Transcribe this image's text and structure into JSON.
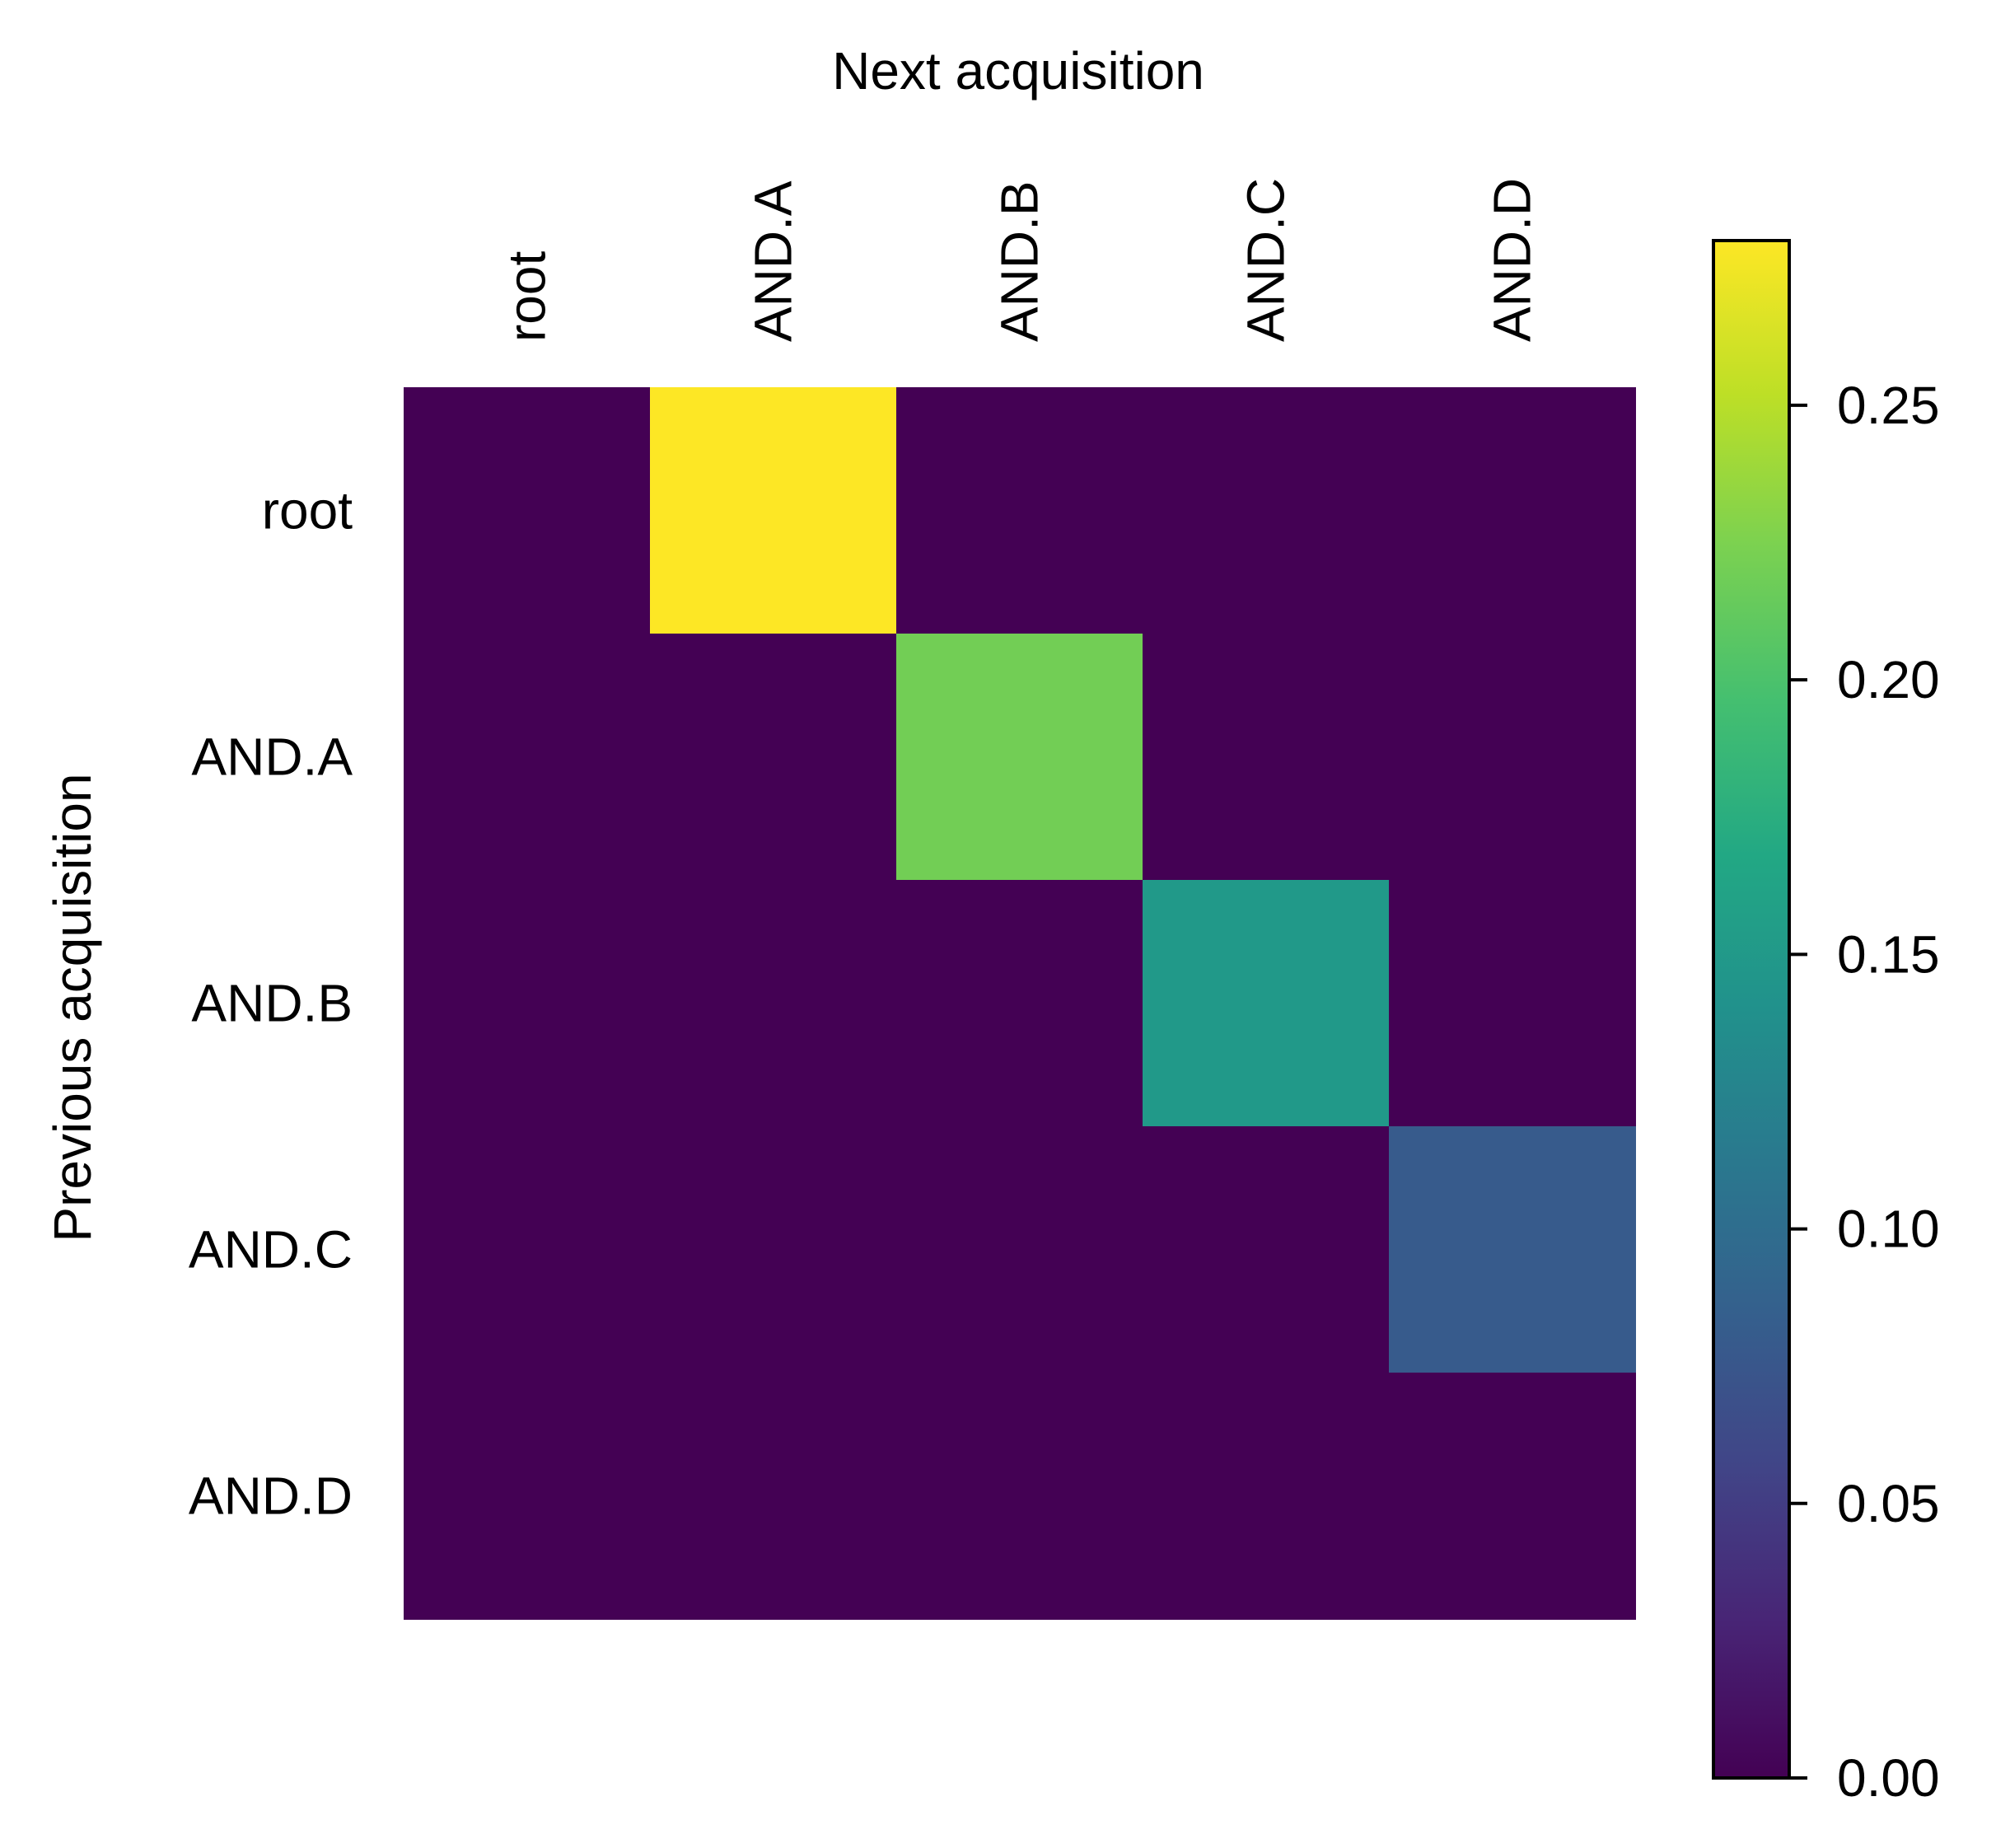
{
  "chart_data": {
    "type": "heatmap",
    "title": "",
    "xlabel": "Next acquisition",
    "ylabel": "Previous acquisition",
    "x_categories": [
      "root",
      "AND.A",
      "AND.B",
      "AND.C",
      "AND.D"
    ],
    "y_categories": [
      "root",
      "AND.A",
      "AND.B",
      "AND.C",
      "AND.D"
    ],
    "values": [
      [
        0.0,
        0.28,
        0.0,
        0.0,
        0.0
      ],
      [
        0.0,
        0.0,
        0.22,
        0.0,
        0.0
      ],
      [
        0.0,
        0.0,
        0.0,
        0.15,
        0.0
      ],
      [
        0.0,
        0.0,
        0.0,
        0.0,
        0.08
      ],
      [
        0.0,
        0.0,
        0.0,
        0.0,
        0.0
      ]
    ],
    "colormap": "viridis",
    "colorbar": {
      "range": [
        0.0,
        0.28
      ],
      "ticks": [
        0.0,
        0.05,
        0.1,
        0.15,
        0.2,
        0.25
      ],
      "tick_labels": [
        "0.00",
        "0.05",
        "0.10",
        "0.15",
        "0.20",
        "0.25"
      ]
    },
    "x_axis_position": "top",
    "grid": false
  }
}
